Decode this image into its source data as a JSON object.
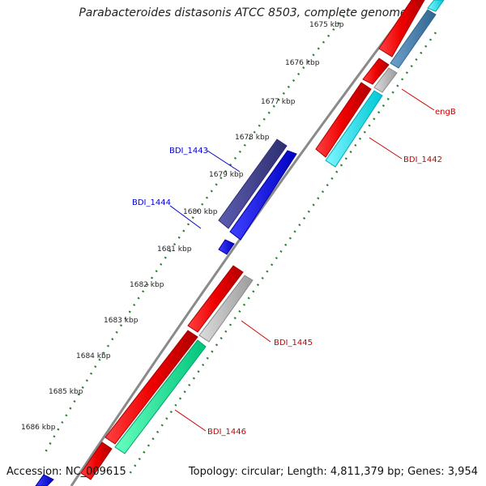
{
  "title": "Parabacteroides distasonis ATCC 8503, complete genome",
  "footer": {
    "accession": "Accession: NC_009615",
    "summary": "Topology: circular; Length: 4,811,379 bp; Genes: 3,954"
  },
  "kbp_ticks": [
    {
      "label": "1675 kbp"
    },
    {
      "label": "1676 kbp"
    },
    {
      "label": "1677 kbp"
    },
    {
      "label": "1678 kbp"
    },
    {
      "label": "1679 kbp"
    },
    {
      "label": "1680 kbp"
    },
    {
      "label": "1681 kbp"
    },
    {
      "label": "1682 kbp"
    },
    {
      "label": "1683 kbp"
    },
    {
      "label": "1684 kbp"
    },
    {
      "label": "1685 kbp"
    },
    {
      "label": "1686 kbp"
    }
  ],
  "gene_labels": [
    {
      "name": "engB",
      "color": "#cc0000"
    },
    {
      "name": "BDI_1442",
      "color": "#cc0000"
    },
    {
      "name": "BDI_1443",
      "color": "#0000cc"
    },
    {
      "name": "BDI_1444",
      "color": "#0000cc"
    },
    {
      "name": "BDI_1445",
      "color": "#cc0000"
    },
    {
      "name": "BDI_1446",
      "color": "#cc0000"
    }
  ],
  "colors": {
    "backbone": "#8a8a8a",
    "tick_green": "#2e7d32",
    "cds_red": "#ee0000",
    "cds_gray": "#b8b8b8",
    "cds_cyan": "#00e5ee",
    "cds_teal": "#00ee99",
    "cds_navy": "#3d3d8f",
    "cds_blue": "#0000ee",
    "cds_steel": "#4682b4"
  }
}
